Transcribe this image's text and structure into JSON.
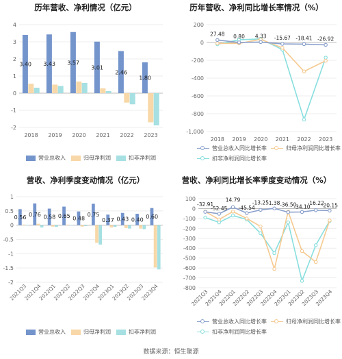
{
  "source": "数据来源：恒生聚源",
  "charts": [
    {
      "title": "历年营收、净利情况（亿元）",
      "legend": [
        "营业总收入",
        "归母净利润",
        "扣非净利润"
      ]
    },
    {
      "title": "历年营收、净利同比增长率情况（%）",
      "legend": [
        "营业总收入同比增长率",
        "归母净利润同比增长率",
        "扣非净利润同比增长率"
      ]
    },
    {
      "title": "营收、净利季度变动情况（亿元）",
      "legend": [
        "营业总收入",
        "归母净利润",
        "扣非净利润"
      ]
    },
    {
      "title": "营收、净利同比增长率季度变动情况（%）",
      "legend": [
        "营业总收入同比增长率",
        "归母净利润同比增长率",
        "扣非净利润同比增长率"
      ]
    }
  ],
  "colors": {
    "revenue": "#7494cc",
    "net": "#f8d8a8",
    "deducted": "#a6e0e2",
    "revenue_line": "#8aa0cc",
    "net_line": "#f5c990",
    "deducted_line": "#88dede"
  },
  "chart_data": [
    {
      "type": "bar",
      "categories": [
        "2018",
        "2019",
        "2020",
        "2021",
        "2022",
        "2023"
      ],
      "series": [
        {
          "name": "营业总收入",
          "values": [
            3.4,
            3.43,
            3.57,
            3.01,
            2.46,
            1.8
          ],
          "labels": [
            "3.40",
            "3.43",
            "3.57",
            "3.01",
            "2.46",
            "1.80"
          ]
        },
        {
          "name": "归母净利润",
          "values": [
            0.55,
            0.5,
            0.68,
            0.28,
            -0.55,
            -1.7
          ]
        },
        {
          "name": "扣非净利润",
          "values": [
            0.32,
            0.42,
            0.6,
            0.12,
            -0.65,
            -1.88
          ]
        }
      ],
      "ylim": [
        -2,
        4
      ],
      "yticks": [
        "-2",
        "-1",
        "0",
        "1",
        "2",
        "3",
        "4"
      ]
    },
    {
      "type": "line",
      "categories": [
        "2018",
        "2019",
        "2020",
        "2021",
        "2022",
        "2023"
      ],
      "series": [
        {
          "name": "营业总收入同比增长率",
          "values": [
            27.48,
            0.8,
            4.33,
            -15.67,
            -18.41,
            -26.92
          ],
          "labels": [
            "27.48",
            "0.80",
            "4.33",
            "-15.67",
            "-18.41",
            "-26.92"
          ]
        },
        {
          "name": "归母净利润同比增长率",
          "values": [
            -10,
            -10,
            35,
            -60,
            -325,
            -205
          ]
        },
        {
          "name": "扣非净利润同比增长率",
          "values": [
            -20,
            30,
            40,
            -80,
            -865,
            -170
          ]
        }
      ],
      "ylim": [
        -1000,
        200
      ],
      "yticks": [
        "-1,000",
        "-800",
        "-600",
        "-400",
        "-200",
        "0",
        "200"
      ]
    },
    {
      "type": "bar",
      "categories": [
        "2021Q3",
        "2021Q4",
        "2022Q1",
        "2022Q2",
        "2022Q3",
        "2022Q4",
        "2023Q1",
        "2023Q2",
        "2023Q3",
        "2023Q4"
      ],
      "series": [
        {
          "name": "营业总收入",
          "values": [
            0.56,
            0.76,
            0.58,
            0.65,
            0.48,
            0.75,
            0.37,
            0.43,
            0.4,
            0.6
          ],
          "labels": [
            "0.56",
            "0.76",
            "0.58",
            "0.65",
            "0.48",
            "0.75",
            "0.37",
            "0.43",
            "0.40",
            "0.60"
          ]
        },
        {
          "name": "归母净利润",
          "values": [
            0.02,
            0.05,
            -0.05,
            0.02,
            -0.05,
            -0.62,
            -0.08,
            -0.1,
            -0.12,
            -1.48
          ]
        },
        {
          "name": "扣非净利润",
          "values": [
            0.01,
            -0.08,
            -0.06,
            0.01,
            -0.03,
            -0.68,
            -0.06,
            -0.12,
            -0.14,
            -1.55
          ]
        }
      ],
      "ylim": [
        -2,
        1
      ],
      "yticks": [
        "-2",
        "-1.5",
        "-1",
        "-0.5",
        "0",
        "0.5",
        "1"
      ]
    },
    {
      "type": "line",
      "categories": [
        "2021Q3",
        "2021Q4",
        "2022Q1",
        "2022Q2",
        "2022Q3",
        "2022Q4",
        "2023Q1",
        "2023Q2",
        "2023Q3",
        "2023Q4"
      ],
      "series": [
        {
          "name": "营业总收入同比增长率",
          "values": [
            -32.91,
            -52.45,
            14.79,
            -45.54,
            -13.25,
            1.38,
            -36.5,
            -34.1,
            -16.22,
            -20.15
          ],
          "labels": [
            "-32.91",
            "-52.45",
            "14.79",
            "-45.54",
            "-13.25",
            "1.38",
            "-36.50",
            "-34.10",
            "-16.22",
            "-20.15"
          ]
        },
        {
          "name": "归母净利润同比增长率",
          "values": [
            -30,
            -110,
            -30,
            -100,
            -180,
            -610,
            -30,
            -430,
            -540,
            -120
          ]
        },
        {
          "name": "扣非净利润同比增长率",
          "values": [
            -90,
            -140,
            -70,
            -110,
            -250,
            -450,
            -140,
            -730,
            -370,
            -125
          ]
        }
      ],
      "ylim": [
        -800,
        100
      ],
      "yticks": [
        "-800",
        "-700",
        "-600",
        "-500",
        "-400",
        "-300",
        "-200",
        "-100",
        "0",
        "100"
      ]
    }
  ]
}
